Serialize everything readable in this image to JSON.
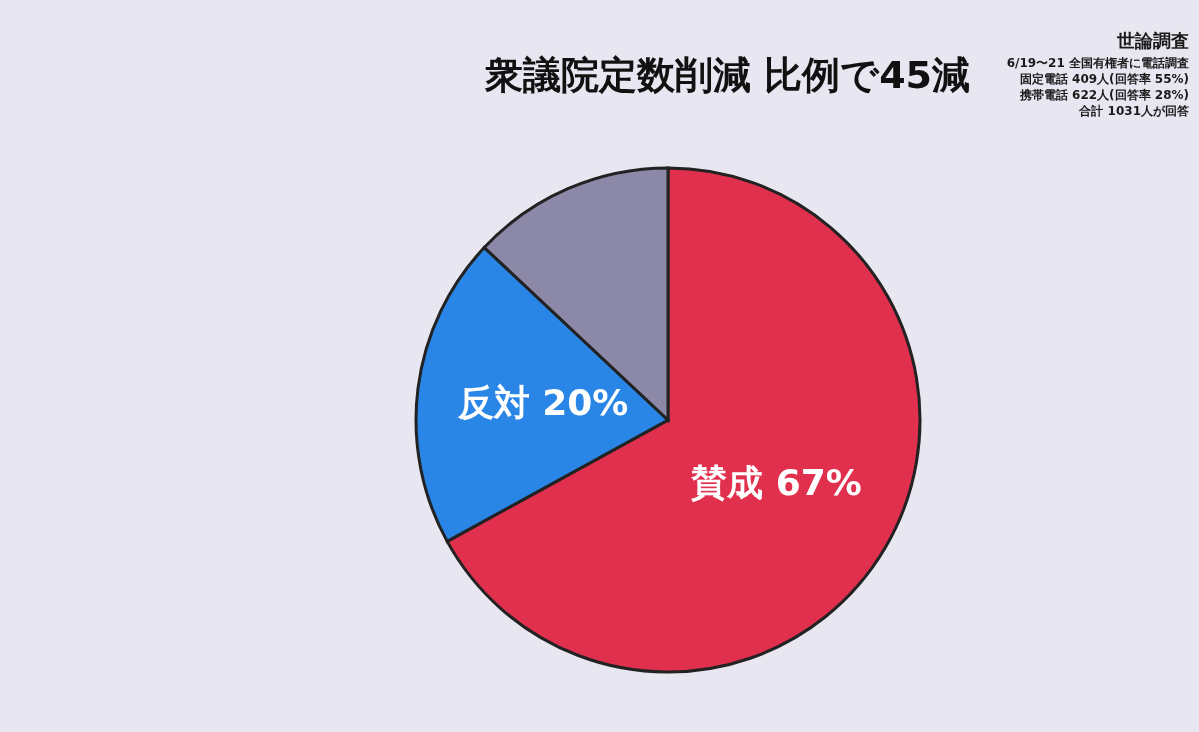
{
  "chart_data": {
    "type": "pie",
    "title": "衆議院定数削減 比例で45減",
    "categories": [
      "賛成",
      "反対",
      null
    ],
    "values": [
      67,
      20,
      13
    ],
    "colors": [
      "#e0304e",
      "#2a86e6",
      "#8c88a8"
    ],
    "value_labels": [
      "67%",
      "20%",
      null
    ],
    "annotations": [
      "世論調査",
      "6/19〜21 全国有権者に電話調査",
      "固定電話 409人(回答率 55%)",
      "携帯電話 622人(回答率 28%)",
      "合計 1031人が回答"
    ]
  }
}
